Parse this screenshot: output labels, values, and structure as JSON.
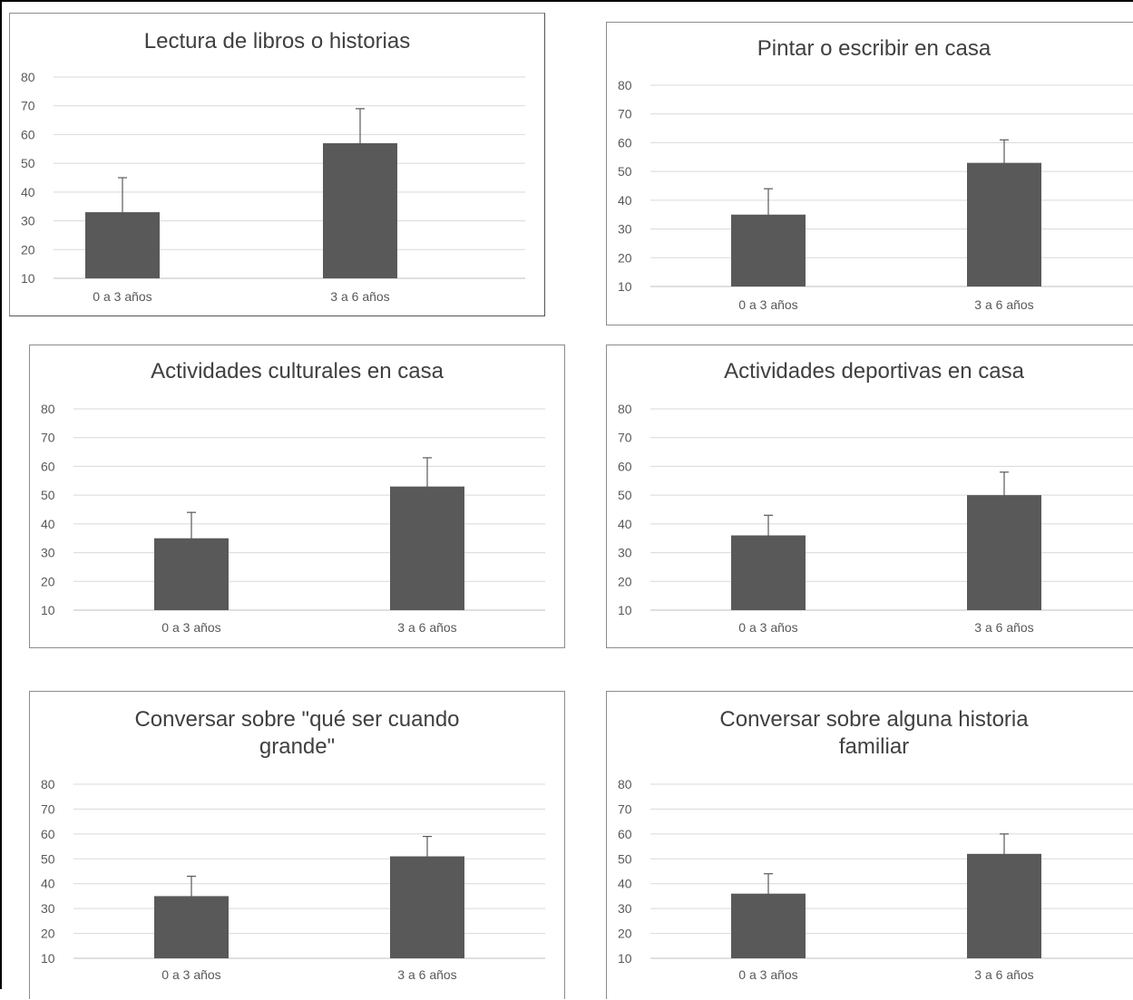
{
  "chart_data": [
    {
      "type": "bar",
      "title_lines": [
        "Lectura de libros o historias"
      ],
      "categories": [
        "0 a 3 años",
        "3 a 6 años"
      ],
      "values": [
        33,
        57
      ],
      "error": [
        12,
        12
      ],
      "yticks": [
        "10",
        "20",
        "30",
        "40",
        "50",
        "60",
        "70",
        "80"
      ],
      "ylim": [
        10,
        80
      ],
      "grid": true,
      "color": "#595959"
    },
    {
      "type": "bar",
      "title_lines": [
        "Pintar o escribir en casa"
      ],
      "categories": [
        "0 a 3 años",
        "3 a 6 años"
      ],
      "values": [
        35,
        53
      ],
      "error": [
        9,
        8
      ],
      "yticks": [
        "10",
        "20",
        "30",
        "40",
        "50",
        "60",
        "70",
        "80"
      ],
      "ylim": [
        10,
        80
      ],
      "grid": true,
      "color": "#595959"
    },
    {
      "type": "bar",
      "title_lines": [
        "Actividades culturales en casa"
      ],
      "categories": [
        "0 a 3 años",
        "3 a 6 años"
      ],
      "values": [
        35,
        53
      ],
      "error": [
        9,
        10
      ],
      "yticks": [
        "10",
        "20",
        "30",
        "40",
        "50",
        "60",
        "70",
        "80"
      ],
      "ylim": [
        10,
        80
      ],
      "grid": true,
      "color": "#595959"
    },
    {
      "type": "bar",
      "title_lines": [
        "Actividades deportivas en casa"
      ],
      "categories": [
        "0 a 3 años",
        "3 a 6 años"
      ],
      "values": [
        36,
        50
      ],
      "error": [
        7,
        8
      ],
      "yticks": [
        "10",
        "20",
        "30",
        "40",
        "50",
        "60",
        "70",
        "80"
      ],
      "ylim": [
        10,
        80
      ],
      "grid": true,
      "color": "#595959"
    },
    {
      "type": "bar",
      "title_lines": [
        "Conversar sobre \"qué ser cuando",
        "grande\""
      ],
      "categories": [
        "0 a 3 años",
        "3 a 6 años"
      ],
      "values": [
        35,
        51
      ],
      "error": [
        8,
        8
      ],
      "yticks": [
        "10",
        "20",
        "30",
        "40",
        "50",
        "60",
        "70",
        "80"
      ],
      "ylim": [
        10,
        80
      ],
      "grid": true,
      "color": "#595959"
    },
    {
      "type": "bar",
      "title_lines": [
        "Conversar sobre alguna historia",
        "familiar"
      ],
      "categories": [
        "0 a 3 años",
        "3 a 6 años"
      ],
      "values": [
        36,
        52
      ],
      "error": [
        8,
        8
      ],
      "yticks": [
        "10",
        "20",
        "30",
        "40",
        "50",
        "60",
        "70",
        "80"
      ],
      "ylim": [
        10,
        80
      ],
      "grid": true,
      "color": "#595959"
    }
  ]
}
